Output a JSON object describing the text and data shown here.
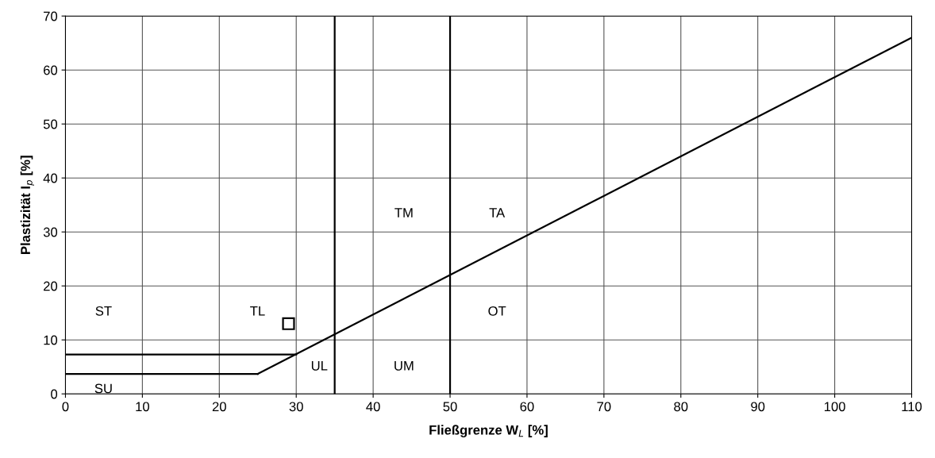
{
  "chart_data": {
    "type": "line",
    "xlabel": "Fließgrenze W$_{L}$ [%]",
    "ylabel": "Plastizität I$_{p}$ [%]",
    "series": [
      {
        "color": "#000000",
        "marker": "none",
        "x": [
          25,
          110
        ],
        "values": [
          3.7,
          66
        ]
      },
      {
        "color": "#000000",
        "marker": "none",
        "x": [
          0,
          30
        ],
        "values": [
          7.3,
          7.3
        ]
      },
      {
        "color": "#000000",
        "marker": "none",
        "x": [
          0,
          25
        ],
        "values": [
          3.7,
          3.7
        ]
      },
      {
        "type": "scatter",
        "color": "#000000",
        "marker": "square",
        "x": [
          29
        ],
        "values": [
          13
        ]
      }
    ],
    "ref_lines": [
      {
        "axis": "x",
        "value": 35,
        "color": "#000000"
      },
      {
        "axis": "x",
        "value": 50,
        "color": "#000000"
      }
    ],
    "annotations": [
      "ST",
      "TL",
      "TM",
      "TA",
      "OT",
      "UL",
      "UM",
      "SU"
    ],
    "xlim": [
      0,
      110
    ],
    "xticks": [
      0,
      10,
      20,
      30,
      40,
      50,
      60,
      70,
      80,
      90,
      100,
      110
    ],
    "ylim": [
      0,
      70
    ],
    "yticks": [
      0,
      10,
      20,
      30,
      40,
      50,
      60,
      70
    ],
    "grid": true
  }
}
